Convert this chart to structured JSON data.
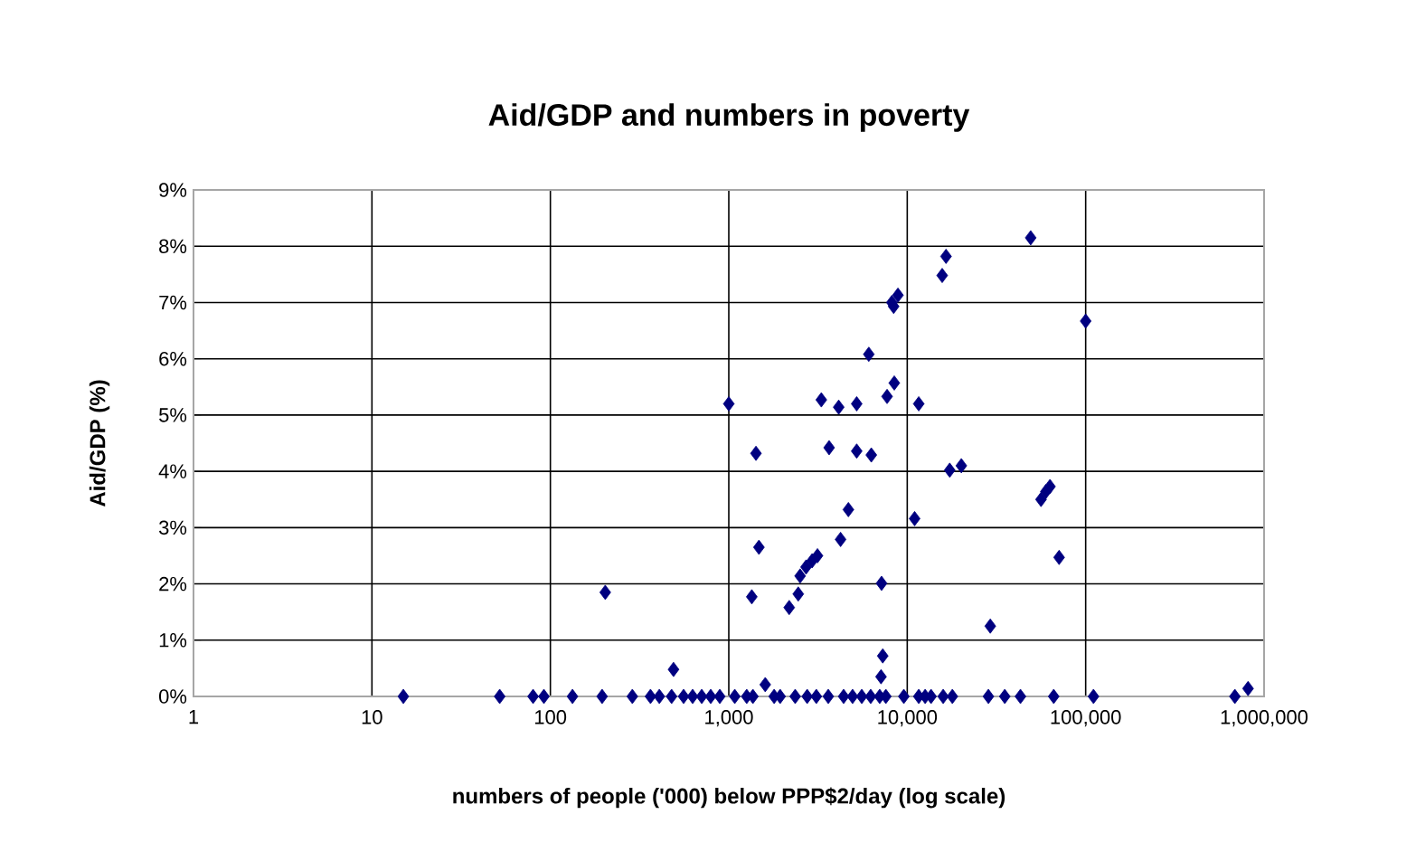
{
  "chart_data": {
    "type": "scatter",
    "title": "Aid/GDP and numbers in poverty",
    "xlabel": "numbers of people ('000) below PPP$2/day (log scale)",
    "ylabel": "Aid/GDP (%)",
    "x": [
      15,
      52,
      80,
      92,
      133,
      195,
      203,
      288,
      364,
      408,
      478,
      490,
      558,
      627,
      705,
      792,
      890,
      1000,
      1080,
      1260,
      1345,
      1365,
      1420,
      1475,
      1600,
      1795,
      1940,
      2180,
      2355,
      2450,
      2510,
      2710,
      2750,
      2930,
      3095,
      3140,
      3300,
      3610,
      3650,
      4130,
      4230,
      4400,
      4680,
      4940,
      5210,
      5210,
      5560,
      6090,
      6240,
      6290,
      7010,
      7130,
      7180,
      7290,
      7590,
      7710,
      8200,
      8390,
      8460,
      8870,
      9570,
      11000,
      11600,
      11600,
      12600,
      13600,
      15700,
      15900,
      16500,
      17300,
      17900,
      20100,
      28500,
      29200,
      35200,
      43100,
      49200,
      56200,
      59800,
      63100,
      66200,
      71000,
      100000,
      110600,
      686000,
      813000
    ],
    "values": [
      0,
      0,
      0,
      0,
      0,
      0,
      1.85,
      0,
      0,
      0,
      0,
      0.48,
      0,
      0,
      0,
      0,
      0,
      5.2,
      0,
      0,
      1.77,
      0,
      4.32,
      2.65,
      0.21,
      0,
      0,
      1.58,
      0,
      1.82,
      2.14,
      2.3,
      0,
      2.41,
      0,
      2.5,
      5.27,
      0,
      4.42,
      5.14,
      2.79,
      0,
      3.32,
      0,
      5.2,
      4.36,
      0,
      6.08,
      0,
      4.29,
      0,
      0.35,
      2.01,
      0.72,
      0,
      5.33,
      7.0,
      6.93,
      5.57,
      7.13,
      0,
      3.16,
      5.2,
      0,
      0,
      0,
      7.48,
      0,
      7.82,
      4.02,
      0,
      4.1,
      0,
      1.25,
      0,
      0,
      8.15,
      3.5,
      3.64,
      3.73,
      0,
      2.47,
      6.67,
      0,
      0,
      0.14
    ],
    "color": "#000080",
    "marker": "diamond",
    "log": "x",
    "grid": true,
    "xlim": [
      1,
      1000000
    ],
    "ylim": [
      0,
      9
    ],
    "xticks": [
      1,
      10,
      100,
      {
        "value": 1000,
        "label": "1,000"
      },
      {
        "value": 10000,
        "label": "10,000"
      },
      {
        "value": 100000,
        "label": "100,000"
      },
      {
        "value": 1000000,
        "label": "1,000,000"
      }
    ],
    "yticks": [
      {
        "value": 0,
        "label": "0%"
      },
      {
        "value": 1,
        "label": "1%"
      },
      {
        "value": 2,
        "label": "2%"
      },
      {
        "value": 3,
        "label": "3%"
      },
      {
        "value": 4,
        "label": "4%"
      },
      {
        "value": 5,
        "label": "5%"
      },
      {
        "value": 6,
        "label": "6%"
      },
      {
        "value": 7,
        "label": "7%"
      },
      {
        "value": 8,
        "label": "8%"
      },
      {
        "value": 9,
        "label": "9%"
      }
    ]
  }
}
